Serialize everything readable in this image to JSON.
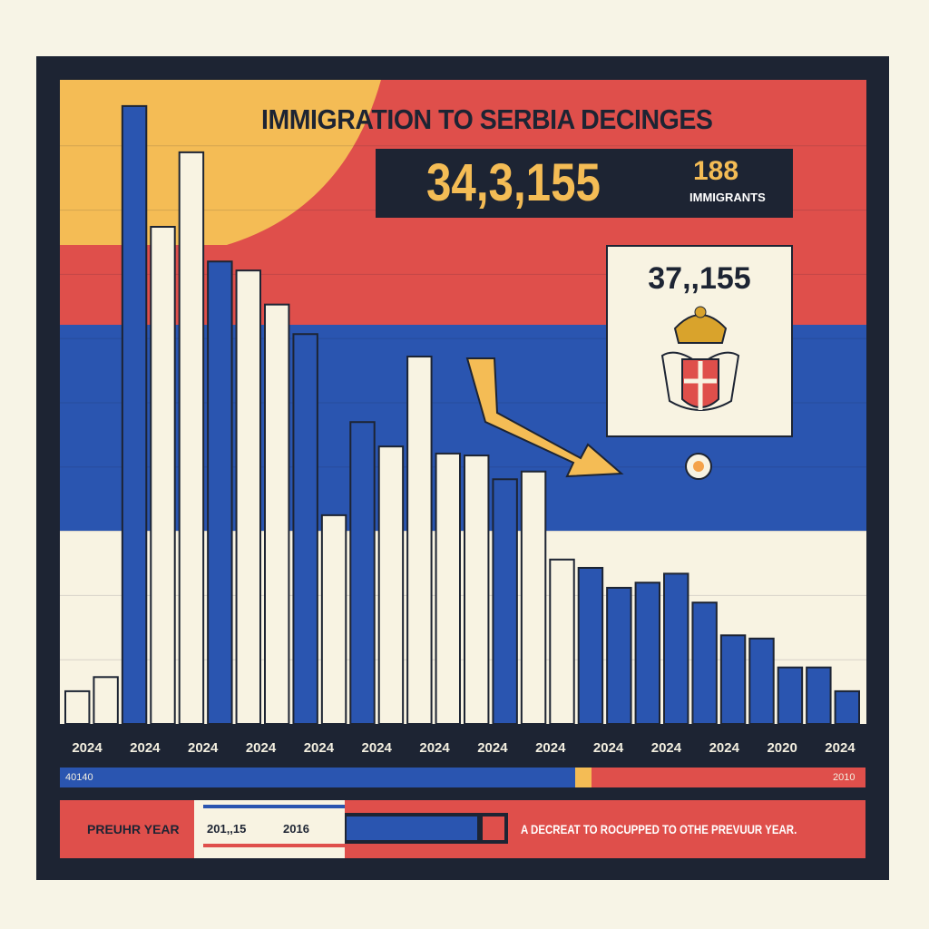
{
  "chart_data": {
    "type": "bar",
    "title": "IMMIGRATION TO SERBIA DECINGES",
    "headline_value": "34,3,155",
    "headline_suffix": "188",
    "headline_unit": "IMMIGRANTS",
    "callout_value": "37,,155",
    "xlabel": "",
    "ylabel": "",
    "ylim": [
      0,
      100
    ],
    "tick_labels": [
      "2024",
      "2024",
      "2024",
      "2024",
      "2024",
      "2024",
      "2024",
      "2024",
      "2024",
      "2024",
      "2024",
      "2024",
      "2020",
      "2024"
    ],
    "values": [
      5.1,
      7.3,
      96.2,
      77.4,
      89,
      72,
      70.6,
      65.3,
      60.7,
      32.5,
      47,
      43.2,
      57.2,
      42.1,
      41.8,
      38.1,
      39.3,
      25.6,
      24.3,
      21.2,
      22,
      23.4,
      18.9,
      13.8,
      13.3,
      8.8,
      8.8,
      5.1
    ],
    "colors": [
      "#f8f3e2",
      "#f8f3e2",
      "#2a55b0",
      "#f8f3e2",
      "#f8f3e2",
      "#2a55b0",
      "#f8f3e2",
      "#f8f3e2",
      "#2a55b0",
      "#f8f3e2",
      "#2a55b0",
      "#f8f3e2",
      "#f8f3e2",
      "#f8f3e2",
      "#f8f3e2",
      "#2a55b0",
      "#f8f3e2",
      "#f8f3e2",
      "#2a55b0",
      "#2a55b0",
      "#2a55b0",
      "#2a55b0",
      "#2a55b0",
      "#2a55b0",
      "#2a55b0",
      "#2a55b0",
      "#2a55b0",
      "#2a55b0"
    ],
    "grid": true
  },
  "legend": {
    "left_label": "40140",
    "right_label": "2010"
  },
  "footer": {
    "label": "PREUHR YEAR",
    "value1": "201,,15",
    "value2": "2016",
    "description": "A DECREAT TO ROCUPPED TO OTHE PREVUUR YEAR."
  },
  "palette": {
    "navy": "#1d2433",
    "red": "#df4f4b",
    "blue": "#2a55b0",
    "yellow": "#f4bc55",
    "cream": "#f8f3e2"
  }
}
